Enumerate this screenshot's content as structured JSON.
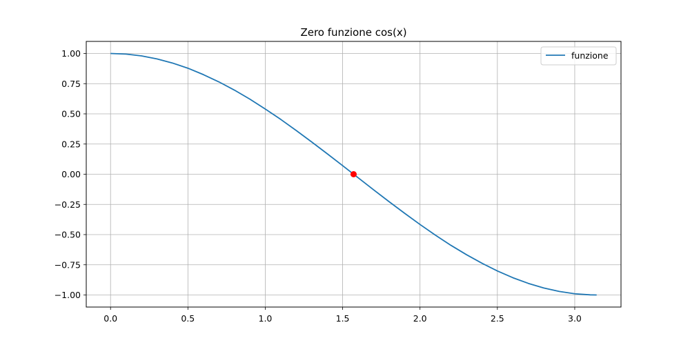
{
  "chart_data": {
    "type": "line",
    "title": "Zero funzione cos(x)",
    "xlabel": "",
    "ylabel": "",
    "xlim": [
      -0.157,
      3.299
    ],
    "ylim": [
      -1.1,
      1.1
    ],
    "xticks": [
      0.0,
      0.5,
      1.0,
      1.5,
      2.0,
      2.5,
      3.0
    ],
    "xtick_labels": [
      "0.0",
      "0.5",
      "1.0",
      "1.5",
      "2.0",
      "2.5",
      "3.0"
    ],
    "yticks": [
      1.0,
      0.75,
      0.5,
      0.25,
      0.0,
      -0.25,
      -0.5,
      -0.75,
      -1.0
    ],
    "ytick_labels": [
      "1.00",
      "0.75",
      "0.50",
      "0.25",
      "0.00",
      "−0.25",
      "−0.50",
      "−0.75",
      "−1.00"
    ],
    "grid": true,
    "legend_position": "top-right",
    "series": [
      {
        "name": "funzione",
        "color": "#1f77b4",
        "x": [
          0.0,
          0.1,
          0.2,
          0.3,
          0.4,
          0.5,
          0.6,
          0.7,
          0.8,
          0.9,
          1.0,
          1.1,
          1.2,
          1.3,
          1.4,
          1.5,
          1.6,
          1.7,
          1.8,
          1.9,
          2.0,
          2.1,
          2.2,
          2.3,
          2.4,
          2.5,
          2.6,
          2.7,
          2.8,
          2.9,
          3.0,
          3.1,
          3.1416
        ],
        "y": [
          1.0,
          0.995,
          0.98,
          0.955,
          0.921,
          0.878,
          0.825,
          0.765,
          0.697,
          0.622,
          0.54,
          0.454,
          0.362,
          0.267,
          0.17,
          0.071,
          -0.029,
          -0.129,
          -0.227,
          -0.323,
          -0.416,
          -0.505,
          -0.589,
          -0.666,
          -0.737,
          -0.801,
          -0.857,
          -0.904,
          -0.942,
          -0.971,
          -0.99,
          -0.999,
          -1.0
        ]
      }
    ],
    "marker": {
      "x": 1.5708,
      "y": 0.0,
      "color": "#ff0000"
    }
  }
}
